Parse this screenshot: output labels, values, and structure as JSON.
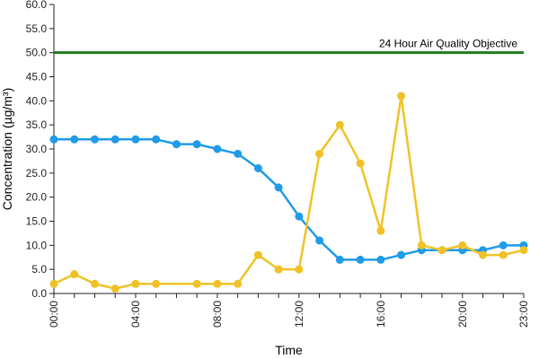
{
  "chart_data": {
    "type": "line",
    "xlabel": "Time",
    "ylabel": "Concentration (µg/m³)",
    "ylim": [
      0,
      60
    ],
    "y_ticks": [
      "0.0",
      "5.0",
      "10.0",
      "15.0",
      "20.0",
      "25.0",
      "30.0",
      "35.0",
      "40.0",
      "45.0",
      "50.0",
      "55.0",
      "60.0"
    ],
    "x_tick_labels": [
      "00:00",
      "04:00",
      "08:00",
      "12:00",
      "16:00",
      "20:00",
      "23:00"
    ],
    "x_tick_hours": [
      0,
      4,
      8,
      12,
      16,
      20,
      23
    ],
    "x": [
      0,
      1,
      2,
      3,
      4,
      5,
      6,
      7,
      8,
      9,
      10,
      11,
      12,
      13,
      14,
      15,
      16,
      17,
      18,
      19,
      20,
      21,
      22,
      23
    ],
    "series": [
      {
        "color": "#1f9be8",
        "values": [
          32,
          32,
          32,
          32,
          32,
          32,
          31,
          31,
          30,
          29,
          26,
          22,
          16,
          11,
          7,
          7,
          7,
          8,
          9,
          9,
          9,
          9,
          10,
          10
        ]
      },
      {
        "color": "#f0c325",
        "marker_fill": "#f0c02a",
        "values": [
          2,
          4,
          2,
          1,
          2,
          2,
          null,
          2,
          2,
          2,
          8,
          5,
          5,
          29,
          35,
          27,
          13,
          41,
          10,
          9,
          10,
          8,
          8,
          9
        ]
      }
    ],
    "objective": {
      "value": 50,
      "label": "24 Hour Air Quality Objective",
      "color": "#1e7a1e"
    },
    "grid": false
  }
}
